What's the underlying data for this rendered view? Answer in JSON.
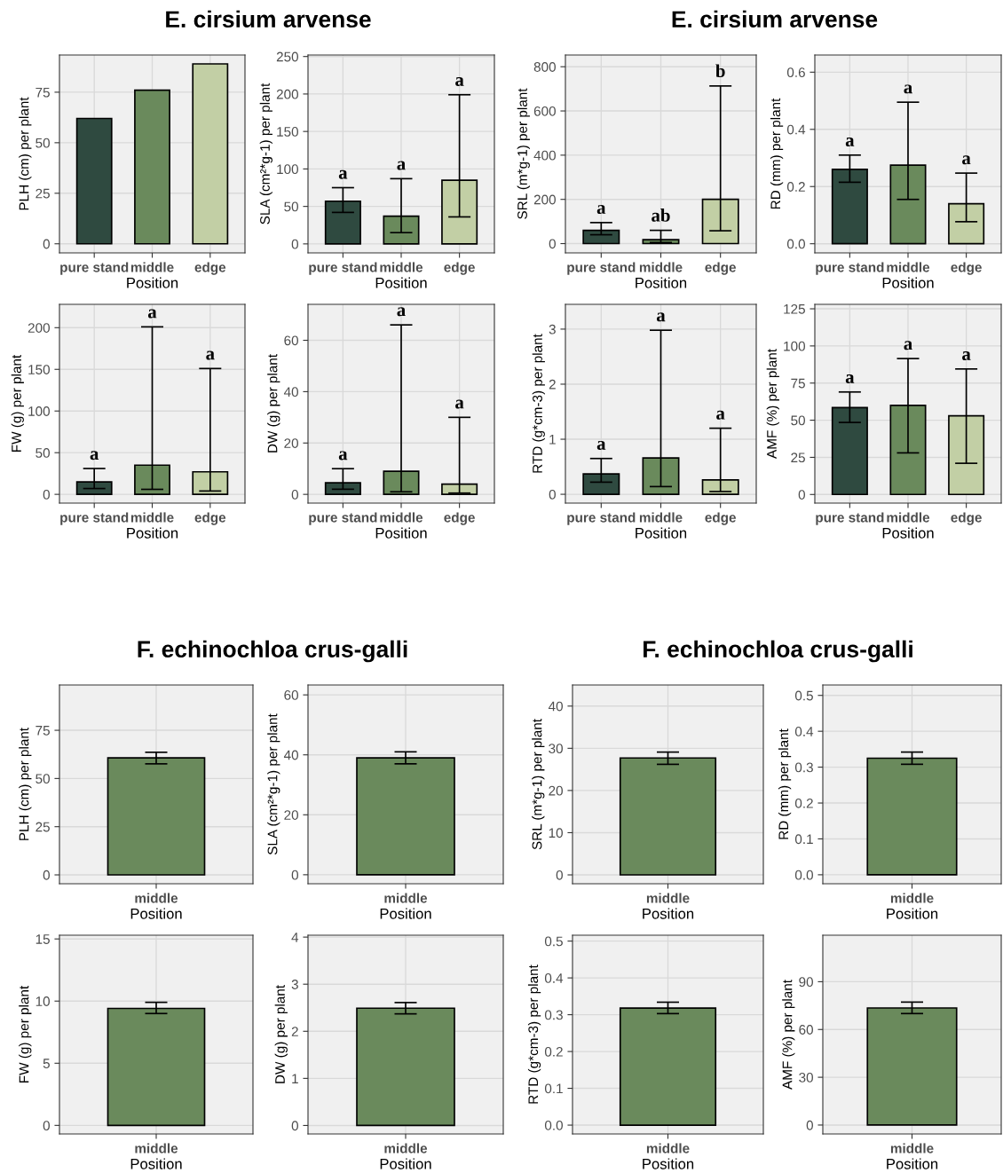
{
  "chart_data": [
    {
      "type": "bar",
      "title": "E. cirsium arvense",
      "xlabel": "Position",
      "ylabel": "PLH (cm) per plant",
      "categories": [
        "pure stand",
        "middle",
        "edge"
      ],
      "values": [
        62,
        76,
        89
      ],
      "colors": [
        "#2f4a40",
        "#6a8a5c",
        "#c2cfa5"
      ],
      "ylim": [
        -4.5,
        93.4
      ],
      "yticks": [
        0,
        25,
        50,
        75
      ],
      "grid": true
    },
    {
      "type": "bar",
      "xlabel": "Position",
      "ylabel": "SLA (cm²*g-1) per plant",
      "categories": [
        "pure stand",
        "middle",
        "edge"
      ],
      "values": [
        57,
        37,
        85
      ],
      "errors": [
        [
          42,
          75
        ],
        [
          15,
          87
        ],
        [
          36,
          199
        ]
      ],
      "colors": [
        "#2f4a40",
        "#6a8a5c",
        "#c2cfa5"
      ],
      "ylim": [
        -12,
        252
      ],
      "yticks": [
        0,
        50,
        100,
        150,
        200,
        250
      ],
      "grid": true,
      "annotations": [
        "a",
        "a",
        "a"
      ]
    },
    {
      "type": "bar",
      "title": "E. cirsium arvense",
      "xlabel": "Position",
      "ylabel": "SRL (m*g-1) per plant",
      "categories": [
        "pure stand",
        "middle",
        "edge"
      ],
      "values": [
        60,
        18,
        200
      ],
      "errors": [
        [
          40,
          95
        ],
        [
          5,
          60
        ],
        [
          58,
          713
        ]
      ],
      "colors": [
        "#2f4a40",
        "#6a8a5c",
        "#c2cfa5"
      ],
      "ylim": [
        -42,
        853
      ],
      "yticks": [
        0,
        200,
        400,
        600,
        800
      ],
      "grid": true,
      "annotations": [
        "a",
        "ab",
        "b"
      ]
    },
    {
      "type": "bar",
      "xlabel": "Position",
      "ylabel": "RD (mm) per plant",
      "categories": [
        "pure stand",
        "middle",
        "edge"
      ],
      "values": [
        0.26,
        0.275,
        0.14
      ],
      "errors": [
        [
          0.215,
          0.31
        ],
        [
          0.155,
          0.495
        ],
        [
          0.077,
          0.247
        ]
      ],
      "colors": [
        "#2f4a40",
        "#6a8a5c",
        "#c2cfa5"
      ],
      "ylim": [
        -0.032,
        0.66
      ],
      "yticks": [
        {
          "value": 0,
          "label": "0.0"
        },
        {
          "value": 0.2,
          "label": "0.2"
        },
        {
          "value": 0.4,
          "label": "0.4"
        },
        {
          "value": 0.6,
          "label": "0.6"
        }
      ],
      "grid": true,
      "annotations": [
        "a",
        "a",
        "a"
      ]
    },
    {
      "type": "bar",
      "xlabel": "Position",
      "ylabel": "FW (g) per plant",
      "categories": [
        "pure stand",
        "middle",
        "edge"
      ],
      "values": [
        15,
        35,
        27
      ],
      "errors": [
        [
          7,
          31
        ],
        [
          6,
          201
        ],
        [
          4,
          151
        ]
      ],
      "colors": [
        "#2f4a40",
        "#6a8a5c",
        "#c2cfa5"
      ],
      "ylim": [
        -10.5,
        228
      ],
      "yticks": [
        0,
        50,
        100,
        150,
        200
      ],
      "grid": true,
      "annotations": [
        "a",
        "a",
        "a"
      ]
    },
    {
      "type": "bar",
      "xlabel": "Position",
      "ylabel": "DW (g) per plant",
      "categories": [
        "pure stand",
        "middle",
        "edge"
      ],
      "values": [
        4.5,
        9,
        4
      ],
      "errors": [
        [
          2,
          10
        ],
        [
          1,
          66
        ],
        [
          0.5,
          30
        ]
      ],
      "colors": [
        "#2f4a40",
        "#6a8a5c",
        "#c2cfa5"
      ],
      "ylim": [
        -3.4,
        74
      ],
      "yticks": [
        0,
        20,
        40,
        60
      ],
      "grid": true,
      "annotations": [
        "a",
        "a",
        "a"
      ]
    },
    {
      "type": "bar",
      "xlabel": "Position",
      "ylabel": "RTD (g*cm-3) per plant",
      "categories": [
        "pure stand",
        "middle",
        "edge"
      ],
      "values": [
        0.37,
        0.66,
        0.26
      ],
      "errors": [
        [
          0.22,
          0.65
        ],
        [
          0.14,
          2.98
        ],
        [
          0.05,
          1.2
        ]
      ],
      "colors": [
        "#2f4a40",
        "#6a8a5c",
        "#c2cfa5"
      ],
      "ylim": [
        -0.16,
        3.45
      ],
      "yticks": [
        0,
        1,
        2,
        3
      ],
      "grid": true,
      "annotations": [
        "a",
        "a",
        "a"
      ]
    },
    {
      "type": "bar",
      "xlabel": "Position",
      "ylabel": "AMF (%) per plant",
      "categories": [
        "pure stand",
        "middle",
        "edge"
      ],
      "values": [
        58.5,
        60,
        53
      ],
      "errors": [
        [
          48.5,
          69
        ],
        [
          28,
          91.5
        ],
        [
          21,
          84.5
        ]
      ],
      "colors": [
        "#2f4a40",
        "#6a8a5c",
        "#c2cfa5"
      ],
      "ylim": [
        -5.8,
        128
      ],
      "yticks": [
        0,
        25,
        50,
        75,
        100,
        125
      ],
      "grid": true,
      "annotations": [
        "a",
        "a",
        "a"
      ]
    },
    {
      "type": "bar",
      "title": "F. echinochloa crus-galli",
      "xlabel": "Position",
      "ylabel": "PLH (cm) per plant",
      "categories": [
        "middle"
      ],
      "values": [
        60.7
      ],
      "errors": [
        [
          57.6,
          63.6
        ]
      ],
      "colors": [
        "#6a8a5c"
      ],
      "ylim": [
        -4.6,
        98.5
      ],
      "yticks": [
        0,
        25,
        50,
        75
      ],
      "grid": true
    },
    {
      "type": "bar",
      "xlabel": "Position",
      "ylabel": "SLA (cm²*g-1) per plant",
      "categories": [
        "middle"
      ],
      "values": [
        39
      ],
      "errors": [
        [
          37,
          41
        ]
      ],
      "colors": [
        "#6a8a5c"
      ],
      "ylim": [
        -3,
        63.3
      ],
      "yticks": [
        0,
        20,
        40,
        60
      ],
      "grid": true
    },
    {
      "type": "bar",
      "title": "F. echinochloa crus-galli",
      "xlabel": "Position",
      "ylabel": "SRL (m*g-1) per plant",
      "categories": [
        "middle"
      ],
      "values": [
        27.7
      ],
      "errors": [
        [
          26.2,
          29.1
        ]
      ],
      "colors": [
        "#6a8a5c"
      ],
      "ylim": [
        -2.1,
        45
      ],
      "yticks": [
        0,
        10,
        20,
        30,
        40
      ],
      "grid": true
    },
    {
      "type": "bar",
      "xlabel": "Position",
      "ylabel": "RD (mm) per plant",
      "categories": [
        "middle"
      ],
      "values": [
        0.325
      ],
      "errors": [
        [
          0.308,
          0.342
        ]
      ],
      "colors": [
        "#6a8a5c"
      ],
      "ylim": [
        -0.025,
        0.529
      ],
      "yticks": [
        {
          "value": 0,
          "label": "0.0"
        },
        0.1,
        0.2,
        0.3,
        0.4,
        0.5
      ],
      "grid": true
    },
    {
      "type": "bar",
      "xlabel": "Position",
      "ylabel": "FW (g) per plant",
      "categories": [
        "middle"
      ],
      "values": [
        9.41
      ],
      "errors": [
        [
          9.0,
          9.9
        ]
      ],
      "colors": [
        "#6a8a5c"
      ],
      "ylim": [
        -0.69,
        15.3
      ],
      "yticks": [
        0,
        5,
        10,
        15
      ],
      "grid": true
    },
    {
      "type": "bar",
      "xlabel": "Position",
      "ylabel": "DW (g) per plant",
      "categories": [
        "middle"
      ],
      "values": [
        2.49
      ],
      "errors": [
        [
          2.37,
          2.61
        ]
      ],
      "colors": [
        "#6a8a5c"
      ],
      "ylim": [
        -0.18,
        4.04
      ],
      "yticks": [
        0,
        1,
        2,
        3,
        4
      ],
      "grid": true
    },
    {
      "type": "bar",
      "xlabel": "Position",
      "ylabel": "RTD (g*cm-3) per plant",
      "categories": [
        "middle"
      ],
      "values": [
        0.318
      ],
      "errors": [
        [
          0.303,
          0.334
        ]
      ],
      "colors": [
        "#6a8a5c"
      ],
      "ylim": [
        -0.024,
        0.516
      ],
      "yticks": [
        {
          "value": 0,
          "label": "0.0"
        },
        0.1,
        0.2,
        0.3,
        0.4,
        0.5
      ],
      "grid": true
    },
    {
      "type": "bar",
      "xlabel": "Position",
      "ylabel": "AMF (%) per plant",
      "categories": [
        "middle"
      ],
      "values": [
        73.5
      ],
      "errors": [
        [
          70,
          77.2
        ]
      ],
      "colors": [
        "#6a8a5c"
      ],
      "ylim": [
        -5.6,
        119.2
      ],
      "yticks": [
        0,
        30,
        60,
        90
      ],
      "grid": true
    }
  ]
}
